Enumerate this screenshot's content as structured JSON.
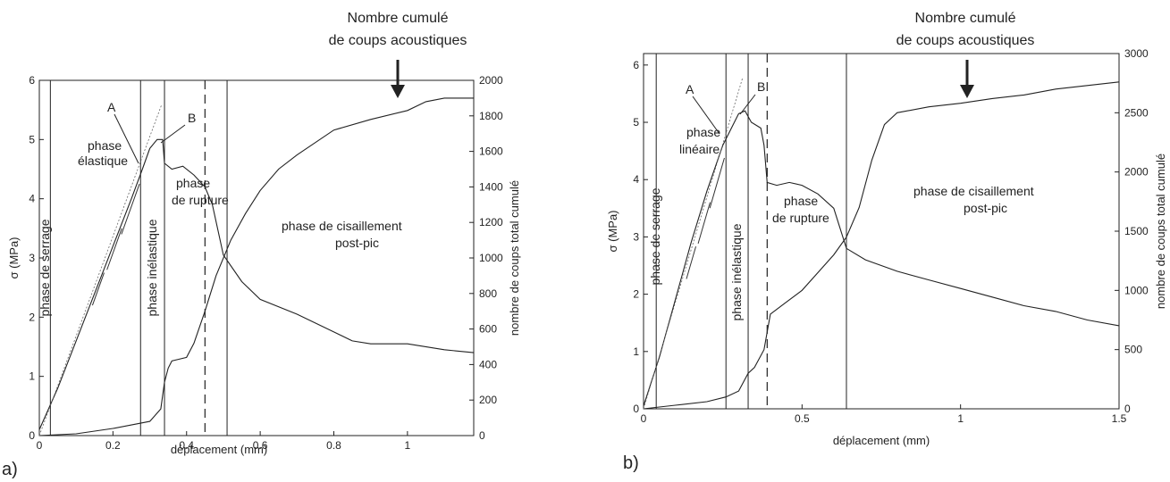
{
  "chart_data": [
    {
      "panel_label": "a)",
      "type": "line",
      "xlabel": "déplacement (mm)",
      "ylabel": "σ (MPa)",
      "y2label": "nombre de coups total cumulé",
      "xlim": [
        0,
        1.18
      ],
      "ylim": [
        0,
        6
      ],
      "y2lim": [
        0,
        2000
      ],
      "x_ticks": [
        "0",
        "0.2",
        "0.4",
        "0.6",
        "0.8",
        "1"
      ],
      "y_ticks": [
        "0",
        "1",
        "2",
        "3",
        "4",
        "5",
        "6"
      ],
      "y2_ticks": [
        "0",
        "200",
        "400",
        "600",
        "800",
        "1000",
        "1200",
        "1400",
        "1600",
        "1800",
        "2000"
      ],
      "phase_lines": [
        0.03,
        0.275,
        0.34,
        0.51
      ],
      "dashed_line": 0.45,
      "series": [
        {
          "axis": "left",
          "x": [
            0,
            0.05,
            0.1,
            0.15,
            0.2,
            0.25,
            0.28,
            0.3,
            0.32,
            0.335,
            0.34,
            0.36,
            0.39,
            0.42,
            0.45,
            0.47,
            0.5,
            0.55,
            0.6,
            0.7,
            0.8,
            0.85,
            0.9,
            1.0,
            1.1,
            1.18
          ],
          "y": [
            0.1,
            0.8,
            1.6,
            2.4,
            3.2,
            4.0,
            4.5,
            4.85,
            5.0,
            5.0,
            4.6,
            4.5,
            4.55,
            4.4,
            4.2,
            3.9,
            3.05,
            2.6,
            2.3,
            2.05,
            1.75,
            1.6,
            1.55,
            1.55,
            1.45,
            1.4
          ]
        },
        {
          "axis": "right",
          "x": [
            0,
            0.1,
            0.2,
            0.25,
            0.3,
            0.33,
            0.34,
            0.35,
            0.36,
            0.38,
            0.4,
            0.42,
            0.45,
            0.48,
            0.52,
            0.56,
            0.6,
            0.65,
            0.7,
            0.8,
            0.9,
            1.0,
            1.05,
            1.1,
            1.18
          ],
          "y": [
            0,
            10,
            40,
            60,
            80,
            150,
            300,
            380,
            420,
            430,
            440,
            520,
            700,
            900,
            1100,
            1250,
            1380,
            1500,
            1580,
            1720,
            1780,
            1830,
            1880,
            1900,
            1900
          ]
        }
      ],
      "annotations": [
        "A",
        "B",
        "phase élastique",
        "phase de serrage",
        "phase inélastique",
        "phase de rupture",
        "phase de cisaillement post-pic",
        "Nombre cumulé de coups acoustiques"
      ]
    },
    {
      "panel_label": "b)",
      "type": "line",
      "xlabel": "déplacement (mm)",
      "ylabel": "σ (MPa)",
      "y2label": "nombre de coups total cumulé",
      "xlim": [
        0,
        1.5
      ],
      "ylim": [
        0,
        6.2
      ],
      "y2lim": [
        0,
        3000
      ],
      "x_ticks": [
        "0",
        "0.5",
        "1",
        "1.5"
      ],
      "y_ticks": [
        "0",
        "1",
        "2",
        "3",
        "4",
        "5",
        "6"
      ],
      "y2_ticks": [
        "0",
        "500",
        "1000",
        "1500",
        "2000",
        "2500",
        "3000"
      ],
      "phase_lines": [
        0.04,
        0.26,
        0.33,
        0.64
      ],
      "dashed_line": 0.39,
      "series": [
        {
          "axis": "left",
          "x": [
            0,
            0.05,
            0.1,
            0.15,
            0.2,
            0.25,
            0.3,
            0.32,
            0.34,
            0.37,
            0.38,
            0.39,
            0.42,
            0.46,
            0.5,
            0.55,
            0.6,
            0.64,
            0.7,
            0.8,
            0.9,
            1.0,
            1.1,
            1.2,
            1.3,
            1.4,
            1.5
          ],
          "y": [
            0.05,
            0.9,
            1.9,
            2.9,
            3.8,
            4.6,
            5.15,
            5.2,
            5.0,
            4.9,
            4.6,
            3.95,
            3.9,
            3.95,
            3.9,
            3.75,
            3.5,
            2.8,
            2.6,
            2.4,
            2.25,
            2.1,
            1.95,
            1.8,
            1.7,
            1.55,
            1.45
          ]
        },
        {
          "axis": "right",
          "x": [
            0,
            0.1,
            0.2,
            0.26,
            0.3,
            0.33,
            0.35,
            0.38,
            0.4,
            0.45,
            0.5,
            0.55,
            0.6,
            0.64,
            0.68,
            0.72,
            0.76,
            0.8,
            0.9,
            1.0,
            1.1,
            1.2,
            1.3,
            1.4,
            1.5
          ],
          "y": [
            0,
            30,
            60,
            100,
            150,
            300,
            350,
            500,
            800,
            900,
            1000,
            1150,
            1300,
            1450,
            1700,
            2100,
            2400,
            2500,
            2550,
            2580,
            2620,
            2650,
            2700,
            2730,
            2760
          ]
        }
      ],
      "annotations": [
        "A",
        "B",
        "phase linéaire",
        "phase de serrage",
        "phase inélastique",
        "phase de rupture",
        "phase de cisaillement post-pic",
        "Nombre cumulé de coups acoustiques"
      ]
    }
  ],
  "labels_a": {
    "A": "A",
    "B": "B",
    "elastique_1": "phase",
    "elastique_2": "élastique",
    "serrage": "phase de serrage",
    "inelastique": "phase inélastique",
    "rupture_1": "phase",
    "rupture_2": "de rupture",
    "cis_1": "phase de cisaillement",
    "cis_2": "post-pic",
    "nombre_1": "Nombre cumulé",
    "nombre_2": "de coups acoustiques"
  },
  "labels_b": {
    "A": "A",
    "B": "B",
    "lineaire_1": "phase",
    "lineaire_2": "linéaire",
    "serrage": "phase de serrage",
    "inelastique": "phase inélastique",
    "rupture_1": "phase",
    "rupture_2": "de rupture",
    "cis_1": "phase de cisaillement",
    "cis_2": "post-pic",
    "nombre_1": "Nombre cumulé",
    "nombre_2": "de coups acoustiques"
  }
}
